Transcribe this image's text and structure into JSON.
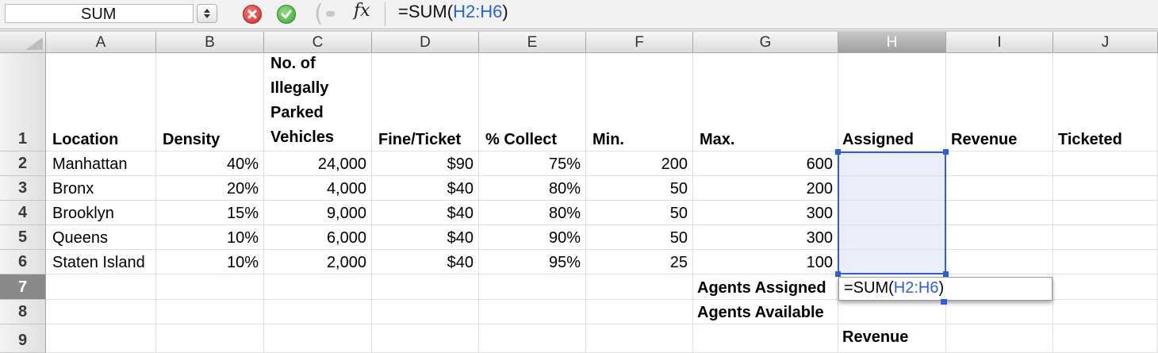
{
  "formula_bar": {
    "name_box": "SUM",
    "fx_label": "fx",
    "formula_prefix": "=SUM(",
    "formula_ref": "H2:H6",
    "formula_suffix": ")"
  },
  "columns": [
    "A",
    "B",
    "C",
    "D",
    "E",
    "F",
    "G",
    "H",
    "I",
    "J"
  ],
  "rows": [
    "1",
    "2",
    "3",
    "4",
    "5",
    "6",
    "7",
    "8",
    "9"
  ],
  "headers": {
    "A": "Location",
    "B": "Density",
    "C": "No. of Illegally Parked Vehicles",
    "D": "Fine/Ticket",
    "E": "% Collect",
    "F": "Min.",
    "G": "Max.",
    "H": "Assigned",
    "I": "Revenue",
    "J": "Ticketed"
  },
  "data_rows": [
    {
      "location": "Manhattan",
      "density": "40%",
      "vehicles": "24,000",
      "fine": "$90",
      "collect": "75%",
      "min": "200",
      "max": "600"
    },
    {
      "location": "Bronx",
      "density": "20%",
      "vehicles": "4,000",
      "fine": "$40",
      "collect": "80%",
      "min": "50",
      "max": "200"
    },
    {
      "location": "Brooklyn",
      "density": "15%",
      "vehicles": "9,000",
      "fine": "$40",
      "collect": "80%",
      "min": "50",
      "max": "300"
    },
    {
      "location": "Queens",
      "density": "10%",
      "vehicles": "6,000",
      "fine": "$40",
      "collect": "90%",
      "min": "50",
      "max": "300"
    },
    {
      "location": "Staten Island",
      "density": "10%",
      "vehicles": "2,000",
      "fine": "$40",
      "collect": "95%",
      "min": "25",
      "max": "100"
    }
  ],
  "summary": {
    "agents_assigned": "Agents Assigned",
    "agents_available": "Agents Available",
    "revenue": "Revenue"
  },
  "editor": {
    "prefix": "=SUM(",
    "ref": "H2:H6",
    "suffix": ")"
  }
}
